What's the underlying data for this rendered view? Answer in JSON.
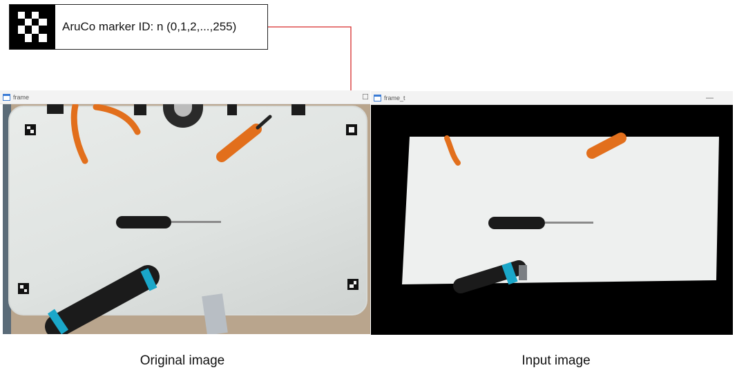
{
  "callout": {
    "text": "AruCo marker ID: n (0,1,2,...,255)",
    "marker_icon": "aruco-marker-icon"
  },
  "left_window": {
    "title": "frame",
    "caption": "Original image"
  },
  "right_window": {
    "title": "frame_t",
    "caption": "Input image"
  },
  "colors": {
    "arrow": "#d62b2b",
    "board": "#e4e7e5",
    "screwdriver_handle": "#1a1a1a",
    "knife_accent": "#1aa7c9",
    "tool_orange": "#e26f1c"
  }
}
